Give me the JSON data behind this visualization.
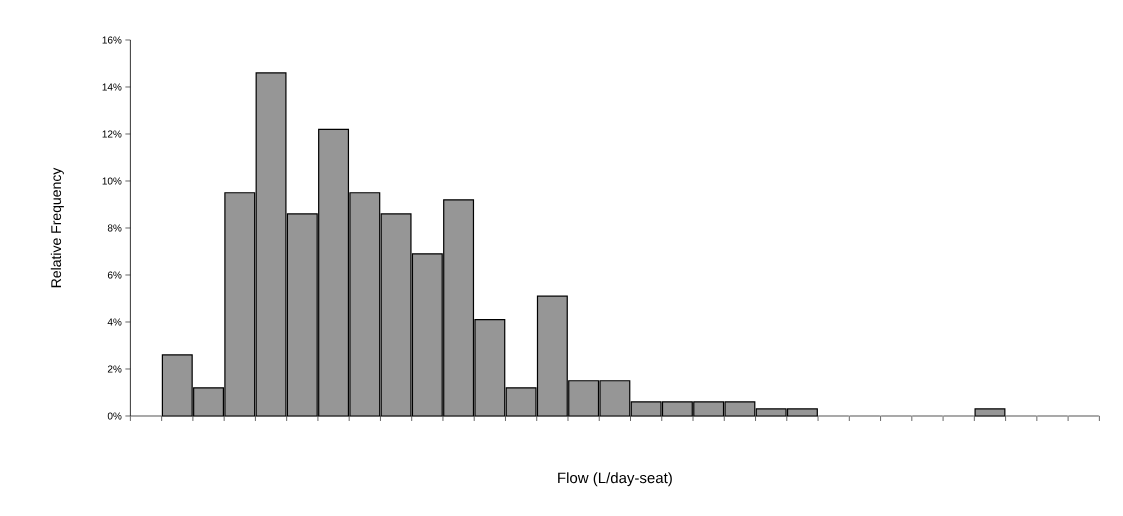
{
  "chart_data": {
    "type": "bar",
    "xlabel": "Flow (L/day-seat)",
    "ylabel": "Relative Frequency",
    "categories": [
      null,
      null,
      null,
      null,
      null,
      null,
      null,
      null,
      null,
      null,
      null,
      null,
      null,
      null,
      null,
      null,
      null,
      null,
      null,
      null,
      null,
      null,
      null,
      null,
      null,
      null,
      null,
      null,
      null,
      null,
      null
    ],
    "values": [
      0,
      2.6,
      1.2,
      9.5,
      14.6,
      8.6,
      12.2,
      9.5,
      8.6,
      6.9,
      9.2,
      4.1,
      1.2,
      5.1,
      1.5,
      1.5,
      0.6,
      0.6,
      0.6,
      0.6,
      0.3,
      0.3,
      0,
      0,
      0,
      0,
      0,
      0.3,
      0,
      0,
      0
    ],
    "color": "#969696",
    "ylim": [
      0,
      16
    ],
    "yticks": [
      {
        "value": 0,
        "label": "0%"
      },
      {
        "value": 2,
        "label": "2%"
      },
      {
        "value": 4,
        "label": "4%"
      },
      {
        "value": 6,
        "label": "6%"
      },
      {
        "value": 8,
        "label": "8%"
      },
      {
        "value": 10,
        "label": "10%"
      },
      {
        "value": 12,
        "label": "12%"
      },
      {
        "value": 14,
        "label": "14%"
      },
      {
        "value": 16,
        "label": "16%"
      }
    ],
    "tick_labels": "y"
  }
}
